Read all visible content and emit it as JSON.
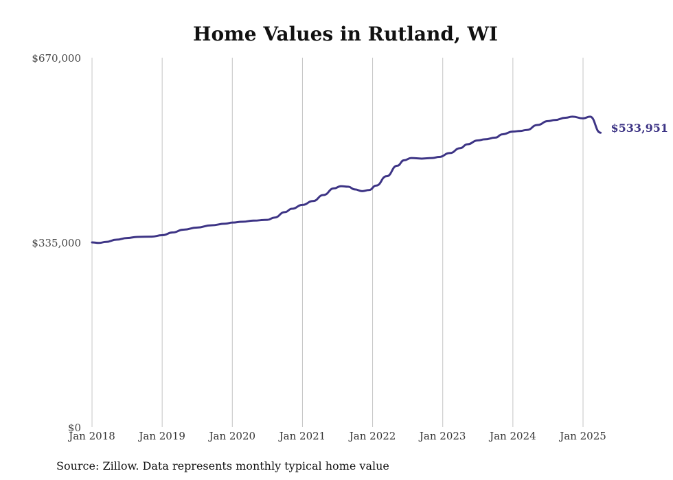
{
  "chart_data": {
    "type": "line",
    "title": "Home Values in Rutland, WI",
    "xlabel": "",
    "ylabel": "",
    "ylim": [
      0,
      670000
    ],
    "yticks": [
      {
        "value": 0,
        "label": "$0"
      },
      {
        "value": 335000,
        "label": "$335,000"
      },
      {
        "value": 670000,
        "label": "$670,000"
      }
    ],
    "xticks": [
      {
        "value": 2018.0,
        "label": "Jan 2018"
      },
      {
        "value": 2019.0,
        "label": "Jan 2019"
      },
      {
        "value": 2020.0,
        "label": "Jan 2020"
      },
      {
        "value": 2021.0,
        "label": "Jan 2021"
      },
      {
        "value": 2022.0,
        "label": "Jan 2022"
      },
      {
        "value": 2023.0,
        "label": "Jan 2023"
      },
      {
        "value": 2024.0,
        "label": "Jan 2024"
      },
      {
        "value": 2025.0,
        "label": "Jan 2025"
      }
    ],
    "xlim": [
      2018.0,
      2025.25
    ],
    "grid": "vertical",
    "series": [
      {
        "color": "#3d3485",
        "end_label": "$533,951",
        "x": [
          2018.0,
          2018.1,
          2018.2,
          2018.35,
          2018.5,
          2018.65,
          2018.85,
          2019.0,
          2019.15,
          2019.3,
          2019.5,
          2019.7,
          2019.9,
          2020.0,
          2020.15,
          2020.3,
          2020.5,
          2020.6,
          2020.75,
          2020.85,
          2021.0,
          2021.15,
          2021.3,
          2021.45,
          2021.55,
          2021.65,
          2021.75,
          2021.85,
          2021.95,
          2022.05,
          2022.2,
          2022.35,
          2022.45,
          2022.55,
          2022.7,
          2022.85,
          2022.95,
          2023.1,
          2023.25,
          2023.35,
          2023.5,
          2023.6,
          2023.75,
          2023.85,
          2024.0,
          2024.1,
          2024.2,
          2024.35,
          2024.5,
          2024.6,
          2024.75,
          2024.85,
          2025.0,
          2025.1,
          2025.25
        ],
        "values": [
          335000,
          334000,
          336000,
          340000,
          343000,
          345000,
          345500,
          348000,
          353000,
          358000,
          362000,
          366000,
          369000,
          371000,
          372500,
          374500,
          376000,
          380000,
          390000,
          396000,
          403000,
          410000,
          421000,
          433000,
          437000,
          436000,
          431000,
          428000,
          430000,
          438000,
          455000,
          474000,
          484000,
          488000,
          487000,
          488000,
          490000,
          497000,
          506000,
          513000,
          520000,
          522000,
          525000,
          531000,
          536000,
          537000,
          539000,
          548000,
          555000,
          557000,
          561000,
          563000,
          560000,
          563000,
          533951
        ]
      }
    ]
  },
  "source_text": "Source: Zillow. Data represents monthly typical home value"
}
